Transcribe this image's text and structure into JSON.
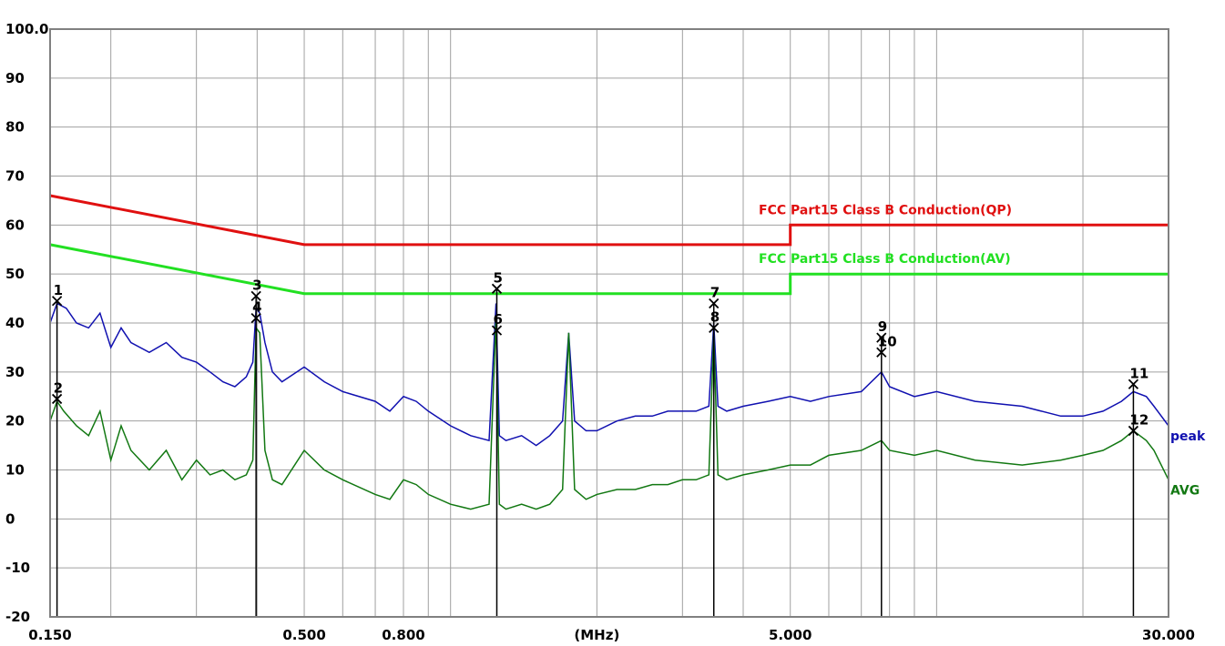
{
  "chart_data": {
    "type": "line",
    "title": "",
    "xlabel": "(MHz)",
    "ylabel": "",
    "x_scale": "log",
    "xlim": [
      0.15,
      30.0
    ],
    "ylim": [
      -20,
      100
    ],
    "grid": true,
    "y_tick_labels": [
      "100.0",
      "90",
      "80",
      "70",
      "60",
      "50",
      "40",
      "30",
      "20",
      "10",
      "0",
      "-10",
      "-20"
    ],
    "y_tick_values": [
      100,
      90,
      80,
      70,
      60,
      50,
      40,
      30,
      20,
      10,
      0,
      -10,
      -20
    ],
    "x_tick_labels": [
      "0.150",
      "0.500",
      "0.800",
      "(MHz)",
      "5.000",
      "30.000"
    ],
    "x_tick_values": [
      0.15,
      0.5,
      0.8,
      2.0,
      5.0,
      30.0
    ],
    "limit_lines": [
      {
        "name": "FCC Part15 Class B Conduction(QP)",
        "color": "#e01010",
        "points": [
          [
            0.15,
            66
          ],
          [
            0.5,
            56
          ],
          [
            5.0,
            56
          ],
          [
            5.0,
            60
          ],
          [
            30.0,
            60
          ]
        ]
      },
      {
        "name": "FCC Part15 Class B Conduction(AV)",
        "color": "#22e022",
        "points": [
          [
            0.15,
            56
          ],
          [
            0.5,
            46
          ],
          [
            5.0,
            46
          ],
          [
            5.0,
            50
          ],
          [
            30.0,
            50
          ]
        ]
      }
    ],
    "series": [
      {
        "name": "peak",
        "color": "#1010b0",
        "x": [
          0.15,
          0.155,
          0.162,
          0.17,
          0.18,
          0.19,
          0.2,
          0.21,
          0.22,
          0.24,
          0.26,
          0.28,
          0.3,
          0.32,
          0.34,
          0.36,
          0.38,
          0.392,
          0.398,
          0.405,
          0.415,
          0.43,
          0.45,
          0.5,
          0.55,
          0.6,
          0.7,
          0.75,
          0.8,
          0.85,
          0.9,
          1.0,
          1.1,
          1.2,
          1.24,
          1.26,
          1.3,
          1.4,
          1.5,
          1.6,
          1.7,
          1.75,
          1.8,
          1.9,
          2.0,
          2.2,
          2.4,
          2.6,
          2.8,
          3.0,
          3.2,
          3.4,
          3.48,
          3.55,
          3.7,
          4.0,
          4.5,
          5.0,
          5.5,
          6.0,
          7.0,
          7.7,
          8.0,
          9.0,
          10.0,
          12.0,
          15.0,
          18.0,
          20.0,
          22.0,
          24.0,
          25.4,
          27.0,
          28.0,
          30.0
        ],
        "y": [
          40,
          44,
          43,
          40,
          39,
          42,
          35,
          39,
          36,
          34,
          36,
          33,
          32,
          30,
          28,
          27,
          29,
          32,
          43,
          42,
          36,
          30,
          28,
          31,
          28,
          26,
          24,
          22,
          25,
          24,
          22,
          19,
          17,
          16,
          44,
          17,
          16,
          17,
          15,
          17,
          20,
          38,
          20,
          18,
          18,
          20,
          21,
          21,
          22,
          22,
          22,
          23,
          40,
          23,
          22,
          23,
          24,
          25,
          24,
          25,
          26,
          30,
          27,
          25,
          26,
          24,
          23,
          21,
          21,
          22,
          24,
          26,
          25,
          23,
          19
        ]
      },
      {
        "name": "AVG",
        "color": "#127812",
        "x": [
          0.15,
          0.155,
          0.16,
          0.17,
          0.18,
          0.19,
          0.2,
          0.21,
          0.22,
          0.24,
          0.26,
          0.28,
          0.3,
          0.32,
          0.34,
          0.36,
          0.38,
          0.392,
          0.398,
          0.405,
          0.415,
          0.43,
          0.45,
          0.5,
          0.55,
          0.6,
          0.7,
          0.75,
          0.8,
          0.85,
          0.9,
          1.0,
          1.1,
          1.2,
          1.24,
          1.26,
          1.3,
          1.4,
          1.5,
          1.6,
          1.7,
          1.75,
          1.8,
          1.9,
          2.0,
          2.2,
          2.4,
          2.6,
          2.8,
          3.0,
          3.2,
          3.4,
          3.48,
          3.55,
          3.7,
          4.0,
          4.5,
          5.0,
          5.5,
          6.0,
          7.0,
          7.7,
          8.0,
          9.0,
          10.0,
          12.0,
          15.0,
          18.0,
          20.0,
          22.0,
          24.0,
          25.4,
          27.0,
          28.0,
          30.0
        ],
        "y": [
          20,
          24,
          22,
          19,
          17,
          22,
          12,
          19,
          14,
          10,
          14,
          8,
          12,
          9,
          10,
          8,
          9,
          12,
          39,
          38,
          14,
          8,
          7,
          14,
          10,
          8,
          5,
          4,
          8,
          7,
          5,
          3,
          2,
          3,
          41,
          3,
          2,
          3,
          2,
          3,
          6,
          38,
          6,
          4,
          5,
          6,
          6,
          7,
          7,
          8,
          8,
          9,
          38,
          9,
          8,
          9,
          10,
          11,
          11,
          13,
          14,
          16,
          14,
          13,
          14,
          12,
          11,
          12,
          13,
          14,
          16,
          18,
          16,
          14,
          8
        ]
      }
    ],
    "markers": [
      {
        "label": "1",
        "x": 0.155,
        "y": 44.5
      },
      {
        "label": "2",
        "x": 0.155,
        "y": 24.5
      },
      {
        "label": "3",
        "x": 0.398,
        "y": 45.5
      },
      {
        "label": "4",
        "x": 0.398,
        "y": 41.0
      },
      {
        "label": "5",
        "x": 1.245,
        "y": 47.0
      },
      {
        "label": "6",
        "x": 1.245,
        "y": 38.5
      },
      {
        "label": "7",
        "x": 3.48,
        "y": 44.0
      },
      {
        "label": "8",
        "x": 3.48,
        "y": 39.0
      },
      {
        "label": "9",
        "x": 7.7,
        "y": 37.0
      },
      {
        "label": "10",
        "x": 7.7,
        "y": 34.0
      },
      {
        "label": "11",
        "x": 25.4,
        "y": 27.5
      },
      {
        "label": "12",
        "x": 25.4,
        "y": 18.0
      }
    ]
  }
}
